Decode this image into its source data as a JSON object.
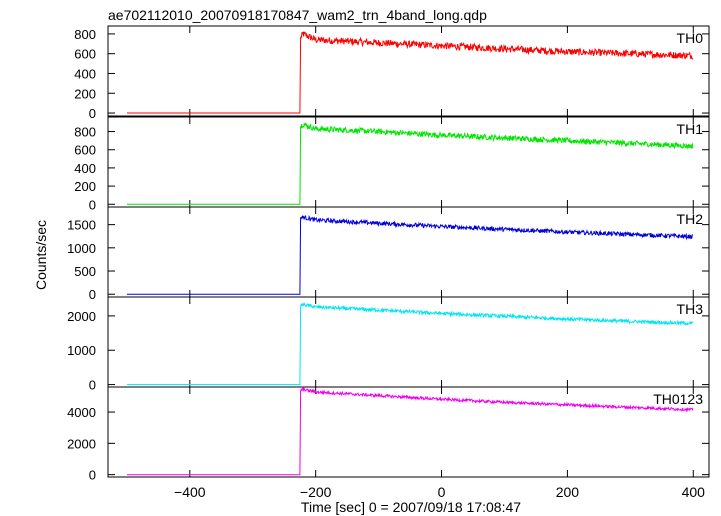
{
  "title": "ae702112010_20070918170847_wam2_trn_4band_long.qdp",
  "ylabel": "Counts/sec",
  "xlabel": "Time [sec] 0 = 2007/09/18 17:08:47",
  "chart_data": {
    "type": "line",
    "title": "ae702112010_20070918170847_wam2_trn_4band_long.qdp",
    "xlabel": "Time [sec] 0 = 2007/09/18 17:08:47",
    "ylabel": "Counts/sec",
    "xlim": [
      -530,
      425
    ],
    "x_ticks": [
      -400,
      -200,
      0,
      200,
      400
    ],
    "x_tick_labels": [
      "−400",
      "−200",
      "0",
      "200",
      "400"
    ],
    "grid": false,
    "panels": [
      {
        "name": "TH0",
        "color": "#ff0000",
        "ylim": [
          -30,
          880
        ],
        "y_ticks": [
          0,
          200,
          400,
          600,
          800
        ],
        "y_tick_labels": [
          "0",
          "200",
          "400",
          "600",
          "800"
        ],
        "x": [
          -500,
          -225,
          -224,
          -220,
          -200,
          -100,
          0,
          100,
          200,
          300,
          400
        ],
        "y": [
          0,
          0,
          760,
          800,
          740,
          710,
          680,
          650,
          620,
          600,
          580
        ],
        "noise": 35
      },
      {
        "name": "TH1",
        "color": "#00e600",
        "ylim": [
          -30,
          960
        ],
        "y_ticks": [
          0,
          200,
          400,
          600,
          800
        ],
        "y_tick_labels": [
          "0",
          "200",
          "400",
          "600",
          "800"
        ],
        "x": [
          -500,
          -225,
          -224,
          -220,
          -200,
          -100,
          0,
          100,
          200,
          300,
          400
        ],
        "y": [
          0,
          0,
          860,
          880,
          830,
          800,
          760,
          730,
          700,
          670,
          640
        ],
        "noise": 30
      },
      {
        "name": "TH2",
        "color": "#0000dd",
        "ylim": [
          -60,
          1880
        ],
        "y_ticks": [
          0,
          500,
          1000,
          1500
        ],
        "y_tick_labels": [
          "0",
          "500",
          "1000",
          "1500"
        ],
        "x": [
          -500,
          -225,
          -224,
          -220,
          -200,
          -100,
          0,
          100,
          200,
          300,
          400
        ],
        "y": [
          0,
          0,
          1650,
          1660,
          1600,
          1530,
          1460,
          1400,
          1340,
          1290,
          1240
        ],
        "noise": 45
      },
      {
        "name": "TH3",
        "color": "#00e5f0",
        "ylim": [
          -70,
          2550
        ],
        "y_ticks": [
          0,
          1000,
          2000
        ],
        "y_tick_labels": [
          "0",
          "1000",
          "2000"
        ],
        "x": [
          -500,
          -225,
          -224,
          -220,
          -200,
          -100,
          0,
          100,
          200,
          300,
          400
        ],
        "y": [
          0,
          0,
          2300,
          2330,
          2260,
          2170,
          2070,
          1990,
          1910,
          1840,
          1780
        ],
        "noise": 50
      },
      {
        "name": "TH0123",
        "color": "#ee00ee",
        "ylim": [
          -150,
          5600
        ],
        "y_ticks": [
          0,
          2000,
          4000
        ],
        "y_tick_labels": [
          "0",
          "2000",
          "4000"
        ],
        "x": [
          -500,
          -225,
          -224,
          -220,
          -200,
          -100,
          0,
          100,
          200,
          300,
          400
        ],
        "y": [
          0,
          0,
          5400,
          5450,
          5280,
          5050,
          4820,
          4620,
          4460,
          4300,
          4150
        ],
        "noise": 90
      }
    ]
  }
}
